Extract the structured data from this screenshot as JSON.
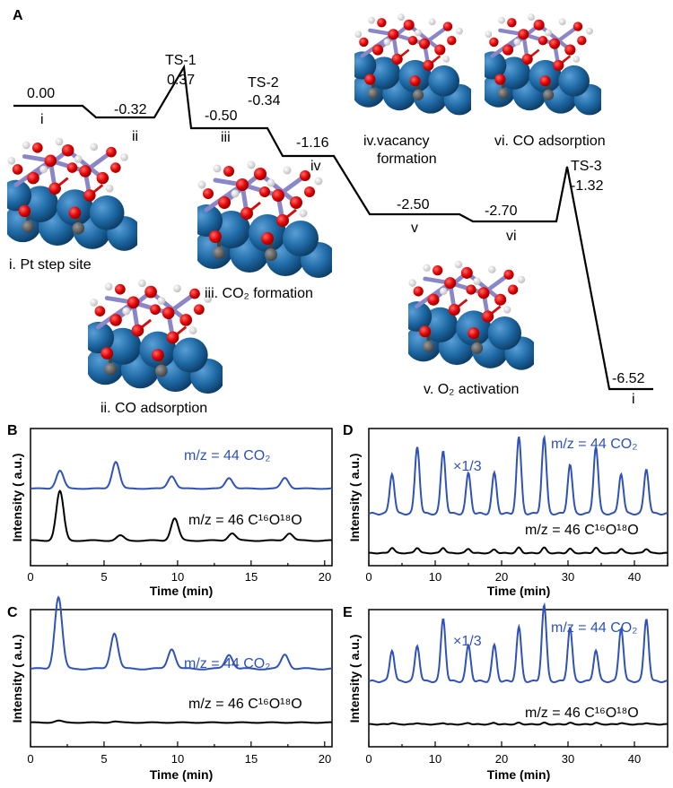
{
  "panels": {
    "A": "A",
    "B": "B",
    "C": "C",
    "D": "D",
    "E": "E"
  },
  "energy": {
    "states": [
      {
        "id": "i",
        "value": "0.00",
        "label": "i",
        "e": 0.0
      },
      {
        "id": "ii",
        "value": "-0.32",
        "label": "ii",
        "e": -0.32
      },
      {
        "id": "iii",
        "value": "-0.50",
        "label": "iii",
        "e": -0.5
      },
      {
        "id": "iv",
        "value": "-1.16",
        "label": "iv",
        "e": -1.16
      },
      {
        "id": "v",
        "value": "-2.50",
        "label": "v",
        "e": -2.5
      },
      {
        "id": "vi",
        "value": "-2.70",
        "label": "vi",
        "e": -2.7
      },
      {
        "id": "final",
        "value": "-6.52",
        "label": "i",
        "e": -6.52
      }
    ],
    "ts": [
      {
        "name": "TS-1",
        "value": "0.37",
        "e": 0.37
      },
      {
        "name": "TS-2",
        "value": "-0.34",
        "e": -0.34
      },
      {
        "name": "TS-3",
        "value": "-1.32",
        "e": -1.32
      }
    ],
    "captions": {
      "i": "i. Pt step site",
      "ii": "ii. CO adsorption",
      "iii": "iii. CO₂ formation",
      "iv_line1": "iv.vacancy",
      "iv_line2": "formation",
      "v": "v. O₂ activation",
      "vi": "vi. CO adsorption"
    }
  },
  "axis": {
    "ylabel": "Intensity ( a.u.)",
    "xlabel": "Time (min)",
    "ticks_short": [
      "0",
      "5",
      "10",
      "15",
      "20"
    ],
    "ticks_long": [
      "0",
      "10",
      "20",
      "30",
      "40"
    ]
  },
  "traces": {
    "co2_label": "m/z = 44  CO₂",
    "c16o18o_label": "m/z = 46  C¹⁶O¹⁸O",
    "scale": "×1/3"
  },
  "chart_data": [
    {
      "panel": "B",
      "type": "line",
      "xlabel": "Time (min)",
      "ylabel": "Intensity ( a.u.)",
      "xlim": [
        0,
        20.5
      ],
      "series": [
        {
          "name": "m/z = 44 CO2",
          "peaks_x": [
            2.0,
            5.8,
            9.6,
            13.5,
            17.3
          ],
          "peaks_h": [
            0.5,
            0.75,
            0.35,
            0.3,
            0.3
          ],
          "color": "#2f52b8"
        },
        {
          "name": "m/z = 46 C16O18O",
          "peaks_x": [
            2.0,
            6.1,
            9.8,
            13.7,
            17.6
          ],
          "peaks_h": [
            1.0,
            0.1,
            0.45,
            0.15,
            0.15
          ],
          "color": "#000000"
        }
      ]
    },
    {
      "panel": "C",
      "type": "line",
      "xlabel": "Time (min)",
      "ylabel": "Intensity ( a.u.)",
      "xlim": [
        0,
        20.5
      ],
      "series": [
        {
          "name": "m/z = 44 CO2",
          "peaks_x": [
            1.9,
            5.7,
            9.6,
            13.5,
            17.3
          ],
          "peaks_h": [
            1.0,
            0.5,
            0.28,
            0.2,
            0.2
          ],
          "color": "#2f52b8"
        },
        {
          "name": "m/z = 46 C16O18O",
          "peaks_x": [
            1.9,
            5.7
          ],
          "peaks_h": [
            0.05,
            0.03
          ],
          "color": "#000000"
        }
      ]
    },
    {
      "panel": "D",
      "type": "line",
      "xlabel": "Time (min)",
      "ylabel": "Intensity ( a.u.)",
      "xlim": [
        0,
        45
      ],
      "series": [
        {
          "name": "m/z = 44 CO2",
          "peaks_x": [
            3.5,
            7.3,
            11.2,
            15.0,
            18.9,
            22.6,
            26.4,
            30.3,
            34.2,
            38.0,
            41.8
          ],
          "peaks_h": [
            0.45,
            0.75,
            0.7,
            0.45,
            0.45,
            0.85,
            0.85,
            0.55,
            0.75,
            0.45,
            0.5
          ],
          "color": "#2f52b8"
        },
        {
          "name": "m/z = 46 C16O18O",
          "peaks_x": [
            3.5,
            7.3,
            11.2,
            15.0,
            18.9,
            22.6,
            26.4,
            30.3,
            34.2,
            38.0,
            41.8
          ],
          "peaks_h": [
            0.15,
            0.15,
            0.15,
            0.12,
            0.1,
            0.15,
            0.15,
            0.12,
            0.15,
            0.12,
            0.12
          ],
          "color": "#000000"
        }
      ]
    },
    {
      "panel": "E",
      "type": "line",
      "xlabel": "Time (min)",
      "ylabel": "Intensity ( a.u.)",
      "xlim": [
        0,
        45
      ],
      "series": [
        {
          "name": "m/z = 44 CO2",
          "peaks_x": [
            3.5,
            7.3,
            11.2,
            15.0,
            18.9,
            22.6,
            26.4,
            30.3,
            34.2,
            38.0,
            41.8
          ],
          "peaks_h": [
            0.35,
            0.4,
            0.7,
            0.4,
            0.4,
            0.6,
            0.85,
            0.6,
            0.35,
            0.6,
            0.7
          ],
          "color": "#2f52b8"
        },
        {
          "name": "m/z = 46 C16O18O",
          "peaks_x": [
            3.5,
            7.3,
            11.2,
            15.0,
            18.9,
            22.6,
            26.4,
            30.3,
            34.2,
            38.0,
            41.8
          ],
          "peaks_h": [
            0.04,
            0.04,
            0.04,
            0.04,
            0.04,
            0.04,
            0.04,
            0.04,
            0.04,
            0.04,
            0.04
          ],
          "color": "#000000"
        }
      ]
    }
  ]
}
